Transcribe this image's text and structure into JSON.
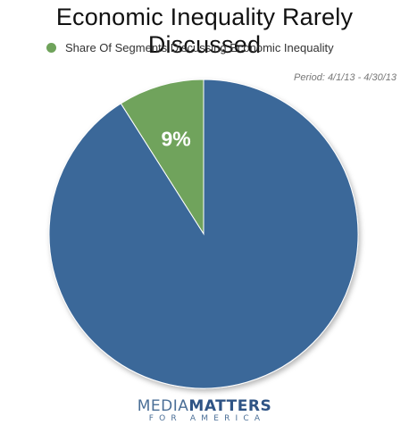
{
  "chart_data": {
    "type": "pie",
    "title": "Economic Inequality Rarely Discussed",
    "legend": {
      "entries": [
        "Share Of Segments Discussing Economic Inequality"
      ],
      "placement": "top-left"
    },
    "slices": [
      {
        "label": "Share Of Segments Discussing Economic Inequality",
        "value": 9,
        "display": "9%",
        "color": "#6fa35b"
      },
      {
        "label": "",
        "value": 91,
        "display": "",
        "color": "#3a6799"
      }
    ],
    "annotation": "Period: 4/1/13 - 4/30/13"
  },
  "logo": {
    "line1_a": "MEDIA",
    "line1_b": "MATTERS",
    "line2": "FOR AMERICA"
  }
}
